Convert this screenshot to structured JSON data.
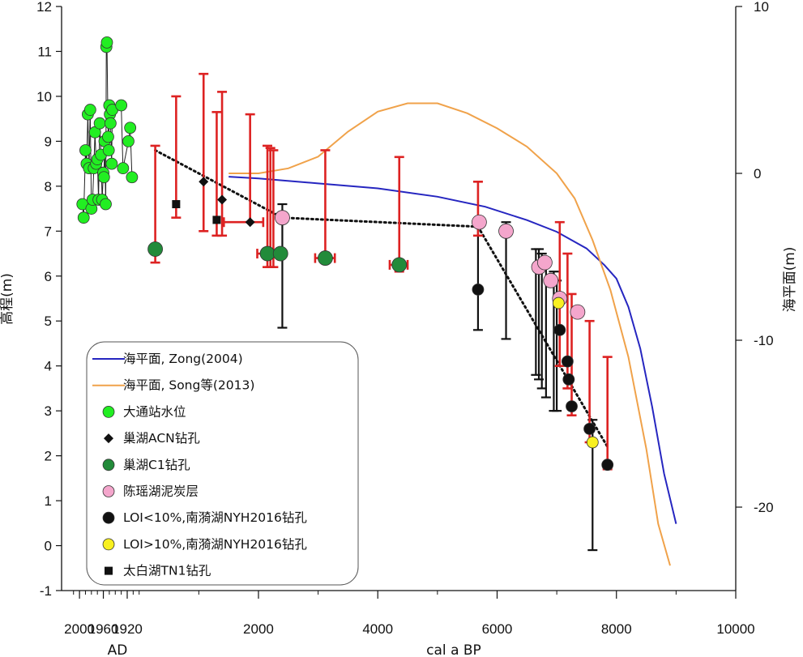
{
  "chart_data": {
    "type": "scatter",
    "title": "",
    "xlabel": "cal a BP",
    "x_sublabel_ad": "AD",
    "ylabel_left": "高程(m)",
    "ylabel_right": "海平面(m)",
    "xlim": [
      -1300,
      10000
    ],
    "ylim_left": [
      -1,
      12
    ],
    "ylim_right": [
      -25,
      10
    ],
    "x_ticks": [
      2000,
      4000,
      6000,
      8000,
      10000
    ],
    "x_tick_labels": [
      "2000",
      "4000",
      "6000",
      "8000",
      "10000"
    ],
    "ad_ticks": [
      {
        "x": -1000,
        "label": "2000"
      },
      {
        "x": -600,
        "label": "1960"
      },
      {
        "x": -200,
        "label": "1920"
      }
    ],
    "y_left_ticks": [
      -1,
      0,
      1,
      2,
      3,
      4,
      5,
      6,
      7,
      8,
      9,
      10,
      11,
      12
    ],
    "y_right_ticks": [
      10,
      0,
      -10,
      -20
    ],
    "grid": false,
    "legend_position": "bottom-left",
    "legend": [
      {
        "label": "海平面, Zong(2004)",
        "kind": "line",
        "color": "#2626c0"
      },
      {
        "label": "海平面, Song等(2013)",
        "kind": "line",
        "color": "#f0a24a"
      },
      {
        "label": "大通站水位",
        "kind": "circle",
        "color": "#22ee22"
      },
      {
        "label": "巢湖ACN钻孔",
        "kind": "diamond",
        "color": "#111111"
      },
      {
        "label": "巢湖C1钻孔",
        "kind": "circle",
        "color": "#228b3a"
      },
      {
        "label": "陈瑶湖泥炭层",
        "kind": "circle",
        "color": "#f4a6cc"
      },
      {
        "label": "LOI<10%,南漪湖NYH2016钻孔",
        "kind": "circle",
        "color": "#111111"
      },
      {
        "label": "LOI>10%,南漪湖NYH2016钻孔",
        "kind": "circle",
        "color": "#f8f020"
      },
      {
        "label": "太白湖TN1钻孔",
        "kind": "square",
        "color": "#111111"
      }
    ],
    "series": [
      {
        "name": "海平面, Zong(2004)",
        "axis": "right",
        "kind": "line",
        "color": "#2626c0",
        "x": [
          1500,
          2000,
          3000,
          4000,
          5000,
          5800,
          6500,
          7000,
          7500,
          7800,
          8000,
          8200,
          8400,
          8600,
          8800,
          9000
        ],
        "y": [
          -0.2,
          -0.3,
          -0.6,
          -0.9,
          -1.4,
          -2.0,
          -2.8,
          -3.5,
          -4.5,
          -5.5,
          -6.3,
          -8.0,
          -10.5,
          -14.0,
          -18.0,
          -21.0
        ]
      },
      {
        "name": "海平面, Song等(2013)",
        "axis": "right",
        "kind": "line",
        "color": "#f0a24a",
        "x": [
          1500,
          2000,
          2500,
          3000,
          3500,
          4000,
          4500,
          5000,
          5500,
          6000,
          6500,
          7000,
          7300,
          7600,
          7900,
          8200,
          8500,
          8700,
          8900
        ],
        "y": [
          0.0,
          0.0,
          0.3,
          1.0,
          2.5,
          3.7,
          4.2,
          4.2,
          3.6,
          2.7,
          1.6,
          0.0,
          -1.5,
          -4.0,
          -7.0,
          -11.0,
          -16.5,
          -21.0,
          -23.5
        ]
      },
      {
        "name": "大通站水位",
        "axis": "left",
        "kind": "points",
        "color": "#22ee22",
        "points": [
          [
            -950,
            7.6
          ],
          [
            -930,
            7.3
          ],
          [
            -900,
            8.8
          ],
          [
            -880,
            8.5
          ],
          [
            -860,
            9.6
          ],
          [
            -840,
            8.4
          ],
          [
            -820,
            9.7
          ],
          [
            -800,
            7.5
          ],
          [
            -780,
            7.7
          ],
          [
            -760,
            8.4
          ],
          [
            -740,
            9.2
          ],
          [
            -720,
            8.5
          ],
          [
            -700,
            8.6
          ],
          [
            -680,
            7.7
          ],
          [
            -660,
            9.4
          ],
          [
            -640,
            8.7
          ],
          [
            -620,
            7.7
          ],
          [
            -600,
            8.3
          ],
          [
            -590,
            8.2
          ],
          [
            -580,
            9.0
          ],
          [
            -560,
            7.6
          ],
          [
            -550,
            11.1
          ],
          [
            -540,
            11.2
          ],
          [
            -520,
            9.1
          ],
          [
            -510,
            8.8
          ],
          [
            -500,
            9.8
          ],
          [
            -490,
            9.6
          ],
          [
            -480,
            9.4
          ],
          [
            -460,
            8.5
          ],
          [
            -450,
            9.7
          ],
          [
            -300,
            9.8
          ],
          [
            -270,
            8.4
          ],
          [
            -180,
            9.0
          ],
          [
            -150,
            9.3
          ],
          [
            -120,
            8.2
          ]
        ]
      },
      {
        "name": "巢湖ACN钻孔",
        "axis": "left",
        "kind": "points",
        "color": "#111111",
        "points": [
          [
            1080,
            8.1
          ],
          [
            1390,
            7.7
          ],
          [
            1860,
            7.2
          ]
        ]
      },
      {
        "name": "巢湖C1钻孔",
        "axis": "left",
        "kind": "points",
        "color": "#228b3a",
        "points": [
          [
            270,
            6.6
          ],
          [
            2150,
            6.5
          ],
          [
            2370,
            6.5
          ],
          [
            3120,
            6.4
          ],
          [
            4360,
            6.25
          ]
        ]
      },
      {
        "name": "陈瑶湖泥炭层",
        "axis": "left",
        "kind": "points",
        "color": "#f4a6cc",
        "points": [
          [
            2400,
            7.3
          ],
          [
            5700,
            7.2
          ],
          [
            6150,
            7.0
          ],
          [
            6700,
            6.2
          ],
          [
            6800,
            6.3
          ],
          [
            6900,
            5.9
          ],
          [
            7050,
            5.5
          ],
          [
            7350,
            5.2
          ]
        ]
      },
      {
        "name": "LOI<10%,南漪湖NYH2016钻孔",
        "axis": "left",
        "kind": "points",
        "color": "#111111",
        "points": [
          [
            5680,
            5.7
          ],
          [
            7050,
            4.8
          ],
          [
            7180,
            4.1
          ],
          [
            7200,
            3.7
          ],
          [
            7250,
            3.1
          ],
          [
            7550,
            2.6
          ],
          [
            7850,
            1.8
          ]
        ]
      },
      {
        "name": "LOI>10%,南漪湖NYH2016钻孔",
        "axis": "left",
        "kind": "points",
        "color": "#f8f020",
        "points": [
          [
            7030,
            5.4
          ],
          [
            7600,
            2.3
          ]
        ]
      },
      {
        "name": "太白湖TN1钻孔",
        "axis": "left",
        "kind": "points",
        "color": "#111111",
        "points": [
          [
            620,
            7.6
          ],
          [
            1300,
            7.25
          ]
        ]
      }
    ],
    "error_bars": {
      "red": [
        {
          "x": 270,
          "y": 6.6,
          "ylow": 6.3,
          "yhigh": 8.9
        },
        {
          "x": 620,
          "y": 7.6,
          "ylow": 7.3,
          "yhigh": 10.0
        },
        {
          "x": 1080,
          "y": 8.1,
          "ylow": 7.0,
          "yhigh": 10.5
        },
        {
          "x": 1300,
          "y": 7.25,
          "ylow": 6.9,
          "yhigh": 9.65
        },
        {
          "x": 1390,
          "y": 7.7,
          "ylow": 6.9,
          "yhigh": 10.1
        },
        {
          "x": 1860,
          "y": 7.2,
          "ylow": 7.2,
          "yhigh": 9.6,
          "xlow": 1420,
          "xhigh": 2080
        },
        {
          "x": 2150,
          "y": 6.5,
          "ylow": 6.2,
          "yhigh": 8.9,
          "xlow": 1980,
          "xhigh": 2350
        },
        {
          "x": 2200,
          "y": 6.5,
          "ylow": 6.2,
          "yhigh": 8.85
        },
        {
          "x": 2250,
          "y": 6.5,
          "ylow": 6.2,
          "yhigh": 8.8
        },
        {
          "x": 3120,
          "y": 6.4,
          "ylow": 6.3,
          "yhigh": 8.8,
          "xlow": 2950,
          "xhigh": 3280
        },
        {
          "x": 4360,
          "y": 6.25,
          "ylow": 6.1,
          "yhigh": 8.65,
          "xlow": 4200,
          "xhigh": 4500
        },
        {
          "x": 5680,
          "y": 7.2,
          "ylow": 6.9,
          "yhigh": 8.1
        },
        {
          "x": 7050,
          "y": 4.8,
          "ylow": 4.0,
          "yhigh": 7.2
        },
        {
          "x": 7180,
          "y": 4.1,
          "ylow": 3.5,
          "yhigh": 6.5
        },
        {
          "x": 7250,
          "y": 3.1,
          "ylow": 2.9,
          "yhigh": 5.6
        },
        {
          "x": 7550,
          "y": 2.6,
          "ylow": 2.3,
          "yhigh": 5.0
        },
        {
          "x": 7850,
          "y": 1.8,
          "ylow": 1.7,
          "yhigh": 4.2
        }
      ],
      "black": [
        {
          "x": 2400,
          "y": 7.3,
          "ylow": 4.85,
          "yhigh": 7.6
        },
        {
          "x": 5680,
          "y": 5.7,
          "ylow": 4.8,
          "yhigh": 7.2
        },
        {
          "x": 6150,
          "y": 7.0,
          "ylow": 4.6,
          "yhigh": 7.2
        },
        {
          "x": 6650,
          "y": 6.1,
          "ylow": 3.8,
          "yhigh": 6.6
        },
        {
          "x": 6700,
          "y": 6.2,
          "ylow": 3.7,
          "yhigh": 6.6
        },
        {
          "x": 6750,
          "y": 6.3,
          "ylow": 3.5,
          "yhigh": 6.5
        },
        {
          "x": 6820,
          "y": 5.9,
          "ylow": 3.3,
          "yhigh": 6.4
        },
        {
          "x": 6950,
          "y": 5.6,
          "ylow": 3.0,
          "yhigh": 6.1
        },
        {
          "x": 7000,
          "y": 5.3,
          "ylow": 3.0,
          "yhigh": 5.9
        },
        {
          "x": 7600,
          "y": 2.3,
          "ylow": -0.1,
          "yhigh": 2.8
        }
      ]
    },
    "trend_lines": [
      {
        "color": "#111111",
        "style": "dotted",
        "points": [
          [
            270,
            8.8
          ],
          [
            2400,
            7.3
          ]
        ]
      },
      {
        "color": "#111111",
        "style": "dotted",
        "points": [
          [
            2400,
            7.3
          ],
          [
            5680,
            7.1
          ]
        ]
      },
      {
        "color": "#111111",
        "style": "dotted",
        "points": [
          [
            5680,
            7.1
          ],
          [
            7850,
            2.2
          ]
        ]
      }
    ]
  }
}
